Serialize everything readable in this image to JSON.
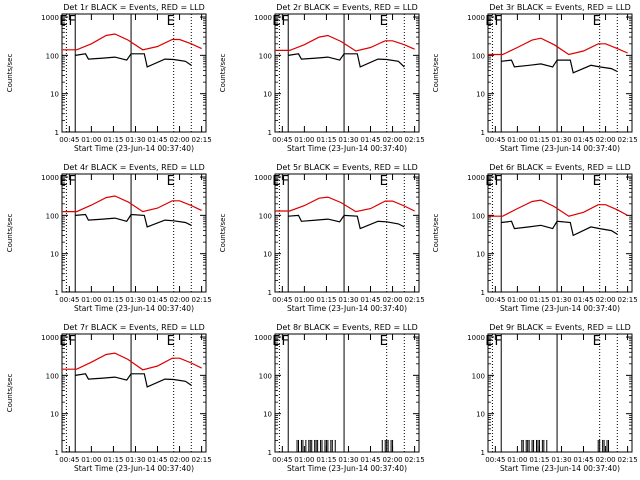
{
  "colors": {
    "events": "#000000",
    "lld": "#dd0000",
    "axis": "#000000",
    "background": "#ffffff"
  },
  "time_ticks": [
    "00:45",
    "01:00",
    "01:15",
    "01:30",
    "01:45",
    "02:00",
    "02:15"
  ],
  "y_ticks": [
    "1",
    "10",
    "100",
    "1000"
  ],
  "chart_data": [
    {
      "type": "line",
      "title": "Det 1r BLACK = Events, RED = LLD",
      "xlabel": "Start Time (23-Jun-14 00:37:40)",
      "ylabel": "Counts/sec",
      "xlim": [
        "00:40",
        "02:18"
      ],
      "ylim": [
        1,
        1200
      ],
      "yscale": "log",
      "markers": [
        {
          "label": "E",
          "time": "00:43",
          "style": "dotted"
        },
        {
          "label": "F",
          "time": "00:49",
          "style": "solid"
        },
        {
          "label": "",
          "time": "01:27",
          "style": "solid"
        },
        {
          "label": "E",
          "time": "01:56",
          "style": "dotted"
        },
        {
          "label": "",
          "time": "02:08",
          "style": "dotted"
        }
      ],
      "series": [
        {
          "name": "LLD",
          "color": "#dd0000",
          "x": [
            "00:40",
            "00:50",
            "01:00",
            "01:10",
            "01:16",
            "01:25",
            "01:35",
            "01:45",
            "01:55",
            "02:00",
            "02:08",
            "02:15"
          ],
          "y": [
            140,
            140,
            200,
            330,
            360,
            250,
            140,
            170,
            260,
            260,
            200,
            150
          ]
        },
        {
          "name": "Events",
          "color": "#000000",
          "x": [
            "00:49",
            "00:56",
            "00:58",
            "01:08",
            "01:16",
            "01:24",
            "01:27",
            "01:36",
            "01:38",
            "01:50",
            "01:56",
            "02:04",
            "02:08"
          ],
          "y": [
            100,
            110,
            80,
            85,
            90,
            75,
            110,
            110,
            50,
            80,
            78,
            70,
            55
          ]
        }
      ]
    },
    {
      "type": "line",
      "title": "Det 2r BLACK = Events, RED = LLD",
      "xlabel": "Start Time (23-Jun-14 00:37:40)",
      "ylabel": "Counts/sec",
      "xlim": [
        "00:40",
        "02:18"
      ],
      "ylim": [
        1,
        1200
      ],
      "yscale": "log",
      "markers": [
        {
          "label": "E",
          "time": "00:43",
          "style": "dotted"
        },
        {
          "label": "F",
          "time": "00:49",
          "style": "solid"
        },
        {
          "label": "",
          "time": "01:27",
          "style": "solid"
        },
        {
          "label": "E",
          "time": "01:56",
          "style": "dotted"
        },
        {
          "label": "",
          "time": "02:08",
          "style": "dotted"
        }
      ],
      "series": [
        {
          "name": "LLD",
          "color": "#dd0000",
          "x": [
            "00:40",
            "00:50",
            "01:00",
            "01:10",
            "01:16",
            "01:25",
            "01:35",
            "01:45",
            "01:55",
            "02:00",
            "02:08",
            "02:15"
          ],
          "y": [
            135,
            135,
            190,
            300,
            330,
            230,
            130,
            160,
            240,
            240,
            190,
            145
          ]
        },
        {
          "name": "Events",
          "color": "#000000",
          "x": [
            "00:49",
            "00:56",
            "00:58",
            "01:08",
            "01:16",
            "01:24",
            "01:27",
            "01:36",
            "01:38",
            "01:50",
            "01:56",
            "02:04",
            "02:08"
          ],
          "y": [
            100,
            110,
            80,
            85,
            90,
            75,
            110,
            110,
            50,
            80,
            78,
            70,
            50
          ]
        }
      ]
    },
    {
      "type": "line",
      "title": "Det 3r BLACK = Events, RED = LLD",
      "xlabel": "Start Time (23-Jun-14 00:37:40)",
      "ylabel": "Counts/sec",
      "xlim": [
        "00:40",
        "02:18"
      ],
      "ylim": [
        1,
        1200
      ],
      "yscale": "log",
      "markers": [
        {
          "label": "E",
          "time": "00:43",
          "style": "dotted"
        },
        {
          "label": "F",
          "time": "00:49",
          "style": "solid"
        },
        {
          "label": "",
          "time": "01:27",
          "style": "solid"
        },
        {
          "label": "E",
          "time": "01:56",
          "style": "dotted"
        },
        {
          "label": "",
          "time": "02:08",
          "style": "dotted"
        }
      ],
      "series": [
        {
          "name": "LLD",
          "color": "#dd0000",
          "x": [
            "00:40",
            "00:50",
            "01:00",
            "01:10",
            "01:16",
            "01:25",
            "01:35",
            "01:45",
            "01:55",
            "02:00",
            "02:08",
            "02:15"
          ],
          "y": [
            105,
            105,
            160,
            250,
            280,
            190,
            105,
            130,
            200,
            200,
            150,
            115
          ]
        },
        {
          "name": "Events",
          "color": "#000000",
          "x": [
            "00:49",
            "00:56",
            "00:58",
            "01:08",
            "01:16",
            "01:24",
            "01:27",
            "01:36",
            "01:38",
            "01:50",
            "01:56",
            "02:04",
            "02:08"
          ],
          "y": [
            70,
            75,
            50,
            55,
            60,
            50,
            75,
            75,
            35,
            55,
            50,
            45,
            38
          ]
        }
      ]
    },
    {
      "type": "line",
      "title": "Det 4r BLACK = Events, RED = LLD",
      "xlabel": "Start Time (23-Jun-14 00:37:40)",
      "ylabel": "Counts/sec",
      "xlim": [
        "00:40",
        "02:18"
      ],
      "ylim": [
        1,
        1200
      ],
      "yscale": "log",
      "markers": [
        {
          "label": "E",
          "time": "00:43",
          "style": "dotted"
        },
        {
          "label": "F",
          "time": "00:49",
          "style": "solid"
        },
        {
          "label": "",
          "time": "01:27",
          "style": "solid"
        },
        {
          "label": "E",
          "time": "01:56",
          "style": "dotted"
        },
        {
          "label": "",
          "time": "02:08",
          "style": "dotted"
        }
      ],
      "series": [
        {
          "name": "LLD",
          "color": "#dd0000",
          "x": [
            "00:40",
            "00:50",
            "01:00",
            "01:10",
            "01:16",
            "01:25",
            "01:35",
            "01:45",
            "01:55",
            "02:00",
            "02:08",
            "02:15"
          ],
          "y": [
            125,
            125,
            185,
            290,
            320,
            225,
            125,
            155,
            240,
            240,
            180,
            135
          ]
        },
        {
          "name": "Events",
          "color": "#000000",
          "x": [
            "00:49",
            "00:56",
            "00:58",
            "01:08",
            "01:16",
            "01:24",
            "01:27",
            "01:36",
            "01:38",
            "01:50",
            "01:56",
            "02:04",
            "02:08"
          ],
          "y": [
            100,
            105,
            75,
            80,
            85,
            70,
            105,
            100,
            50,
            75,
            72,
            65,
            55
          ]
        }
      ]
    },
    {
      "type": "line",
      "title": "Det 5r BLACK = Events, RED = LLD",
      "xlabel": "Start Time (23-Jun-14 00:37:40)",
      "ylabel": "Counts/sec",
      "xlim": [
        "00:40",
        "02:18"
      ],
      "ylim": [
        1,
        1200
      ],
      "yscale": "log",
      "markers": [
        {
          "label": "E",
          "time": "00:43",
          "style": "dotted"
        },
        {
          "label": "F",
          "time": "00:49",
          "style": "solid"
        },
        {
          "label": "",
          "time": "01:27",
          "style": "solid"
        },
        {
          "label": "E",
          "time": "01:56",
          "style": "dotted"
        },
        {
          "label": "",
          "time": "02:08",
          "style": "dotted"
        }
      ],
      "series": [
        {
          "name": "LLD",
          "color": "#dd0000",
          "x": [
            "00:40",
            "00:50",
            "01:00",
            "01:10",
            "01:16",
            "01:25",
            "01:35",
            "01:45",
            "01:55",
            "02:00",
            "02:08",
            "02:15"
          ],
          "y": [
            130,
            130,
            180,
            280,
            300,
            215,
            125,
            150,
            235,
            235,
            175,
            130
          ]
        },
        {
          "name": "Events",
          "color": "#000000",
          "x": [
            "00:49",
            "00:56",
            "00:58",
            "01:08",
            "01:16",
            "01:24",
            "01:27",
            "01:36",
            "01:38",
            "01:50",
            "01:56",
            "02:04",
            "02:08"
          ],
          "y": [
            95,
            100,
            70,
            75,
            80,
            68,
            100,
            95,
            45,
            70,
            68,
            60,
            50
          ]
        }
      ]
    },
    {
      "type": "line",
      "title": "Det 6r BLACK = Events, RED = LLD",
      "xlabel": "Start Time (23-Jun-14 00:37:40)",
      "ylabel": "Counts/sec",
      "xlim": [
        "00:40",
        "02:18"
      ],
      "ylim": [
        1,
        1200
      ],
      "yscale": "log",
      "markers": [
        {
          "label": "E",
          "time": "00:43",
          "style": "dotted"
        },
        {
          "label": "F",
          "time": "00:49",
          "style": "solid"
        },
        {
          "label": "",
          "time": "01:27",
          "style": "solid"
        },
        {
          "label": "E",
          "time": "01:56",
          "style": "dotted"
        },
        {
          "label": "",
          "time": "02:08",
          "style": "dotted"
        }
      ],
      "series": [
        {
          "name": "LLD",
          "color": "#dd0000",
          "x": [
            "00:40",
            "00:50",
            "01:00",
            "01:10",
            "01:16",
            "01:25",
            "01:35",
            "01:45",
            "01:55",
            "02:00",
            "02:08",
            "02:15"
          ],
          "y": [
            95,
            95,
            150,
            230,
            250,
            170,
            95,
            120,
            190,
            190,
            140,
            100
          ]
        },
        {
          "name": "Events",
          "color": "#000000",
          "x": [
            "00:49",
            "00:56",
            "00:58",
            "01:08",
            "01:16",
            "01:24",
            "01:27",
            "01:36",
            "01:38",
            "01:50",
            "01:56",
            "02:04",
            "02:08"
          ],
          "y": [
            65,
            70,
            45,
            50,
            55,
            45,
            70,
            65,
            30,
            50,
            45,
            40,
            32
          ]
        }
      ]
    },
    {
      "type": "line",
      "title": "Det 7r BLACK = Events, RED = LLD",
      "xlabel": "Start Time (23-Jun-14 00:37:40)",
      "ylabel": "Counts/sec",
      "xlim": [
        "00:40",
        "02:18"
      ],
      "ylim": [
        1,
        1200
      ],
      "yscale": "log",
      "markers": [
        {
          "label": "E",
          "time": "00:43",
          "style": "dotted"
        },
        {
          "label": "F",
          "time": "00:49",
          "style": "solid"
        },
        {
          "label": "",
          "time": "01:27",
          "style": "solid"
        },
        {
          "label": "E",
          "time": "01:56",
          "style": "dotted"
        },
        {
          "label": "",
          "time": "02:08",
          "style": "dotted"
        }
      ],
      "series": [
        {
          "name": "LLD",
          "color": "#dd0000",
          "x": [
            "00:40",
            "00:50",
            "01:00",
            "01:10",
            "01:16",
            "01:25",
            "01:35",
            "01:45",
            "01:55",
            "02:00",
            "02:08",
            "02:15"
          ],
          "y": [
            145,
            145,
            220,
            350,
            380,
            260,
            140,
            175,
            280,
            280,
            210,
            155
          ]
        },
        {
          "name": "Events",
          "color": "#000000",
          "x": [
            "00:49",
            "00:56",
            "00:58",
            "01:08",
            "01:16",
            "01:24",
            "01:27",
            "01:36",
            "01:38",
            "01:50",
            "01:56",
            "02:04",
            "02:08"
          ],
          "y": [
            100,
            110,
            80,
            85,
            90,
            75,
            110,
            110,
            50,
            80,
            78,
            70,
            55
          ]
        }
      ]
    },
    {
      "type": "line",
      "title": "Det 8r BLACK = Events, RED = LLD",
      "xlabel": "Start Time (23-Jun-14 00:37:40)",
      "ylabel": "",
      "xlim": [
        "00:40",
        "02:18"
      ],
      "ylim": [
        1,
        1200
      ],
      "yscale": "log",
      "markers": [
        {
          "label": "E",
          "time": "00:43",
          "style": "dotted"
        },
        {
          "label": "F",
          "time": "00:49",
          "style": "solid"
        },
        {
          "label": "",
          "time": "01:27",
          "style": "solid"
        },
        {
          "label": "E",
          "time": "01:56",
          "style": "dotted"
        },
        {
          "label": "",
          "time": "02:08",
          "style": "dotted"
        }
      ],
      "series": [
        {
          "name": "Events",
          "color": "#000000",
          "spikes": true,
          "x": [
            "00:55",
            "00:56",
            "00:57",
            "00:58",
            "00:59",
            "01:00",
            "01:01",
            "01:02",
            "01:03",
            "01:04",
            "01:05",
            "01:06",
            "01:07",
            "01:08",
            "01:09",
            "01:10",
            "01:11",
            "01:12",
            "01:13",
            "01:14",
            "01:15",
            "01:16",
            "01:17",
            "01:18",
            "01:19",
            "01:20",
            "01:21",
            "01:53",
            "01:54",
            "01:55",
            "01:56",
            "01:57",
            "01:58",
            "01:59",
            "02:00",
            "02:01"
          ],
          "y": [
            2,
            2,
            1,
            2,
            2,
            1,
            2,
            1,
            2,
            2,
            2,
            1,
            2,
            2,
            2,
            1,
            2,
            2,
            1,
            2,
            2,
            2,
            1,
            2,
            2,
            1,
            2,
            2,
            1,
            2,
            2,
            2,
            1,
            2,
            2,
            1
          ]
        }
      ]
    },
    {
      "type": "line",
      "title": "Det 9r BLACK = Events, RED = LLD",
      "xlabel": "Start Time (23-Jun-14 00:37:40)",
      "ylabel": "",
      "xlim": [
        "00:40",
        "02:18"
      ],
      "ylim": [
        1,
        1200
      ],
      "yscale": "log",
      "markers": [
        {
          "label": "E",
          "time": "00:43",
          "style": "dotted"
        },
        {
          "label": "F",
          "time": "00:49",
          "style": "solid"
        },
        {
          "label": "",
          "time": "01:27",
          "style": "solid"
        },
        {
          "label": "E",
          "time": "01:56",
          "style": "dotted"
        },
        {
          "label": "",
          "time": "02:08",
          "style": "dotted"
        }
      ],
      "series": [
        {
          "name": "Events",
          "color": "#000000",
          "spikes": true,
          "x": [
            "01:02",
            "01:03",
            "01:04",
            "01:05",
            "01:06",
            "01:07",
            "01:08",
            "01:09",
            "01:10",
            "01:11",
            "01:12",
            "01:13",
            "01:14",
            "01:15",
            "01:16",
            "01:17",
            "01:18",
            "01:19",
            "01:20",
            "01:54",
            "01:55",
            "01:56",
            "01:57",
            "01:58",
            "01:59",
            "02:00",
            "02:01",
            "02:02"
          ],
          "y": [
            1,
            2,
            2,
            1,
            2,
            2,
            2,
            1,
            2,
            2,
            1,
            2,
            2,
            2,
            1,
            2,
            2,
            1,
            2,
            1,
            2,
            2,
            1,
            2,
            2,
            1,
            2,
            2
          ]
        }
      ]
    }
  ]
}
